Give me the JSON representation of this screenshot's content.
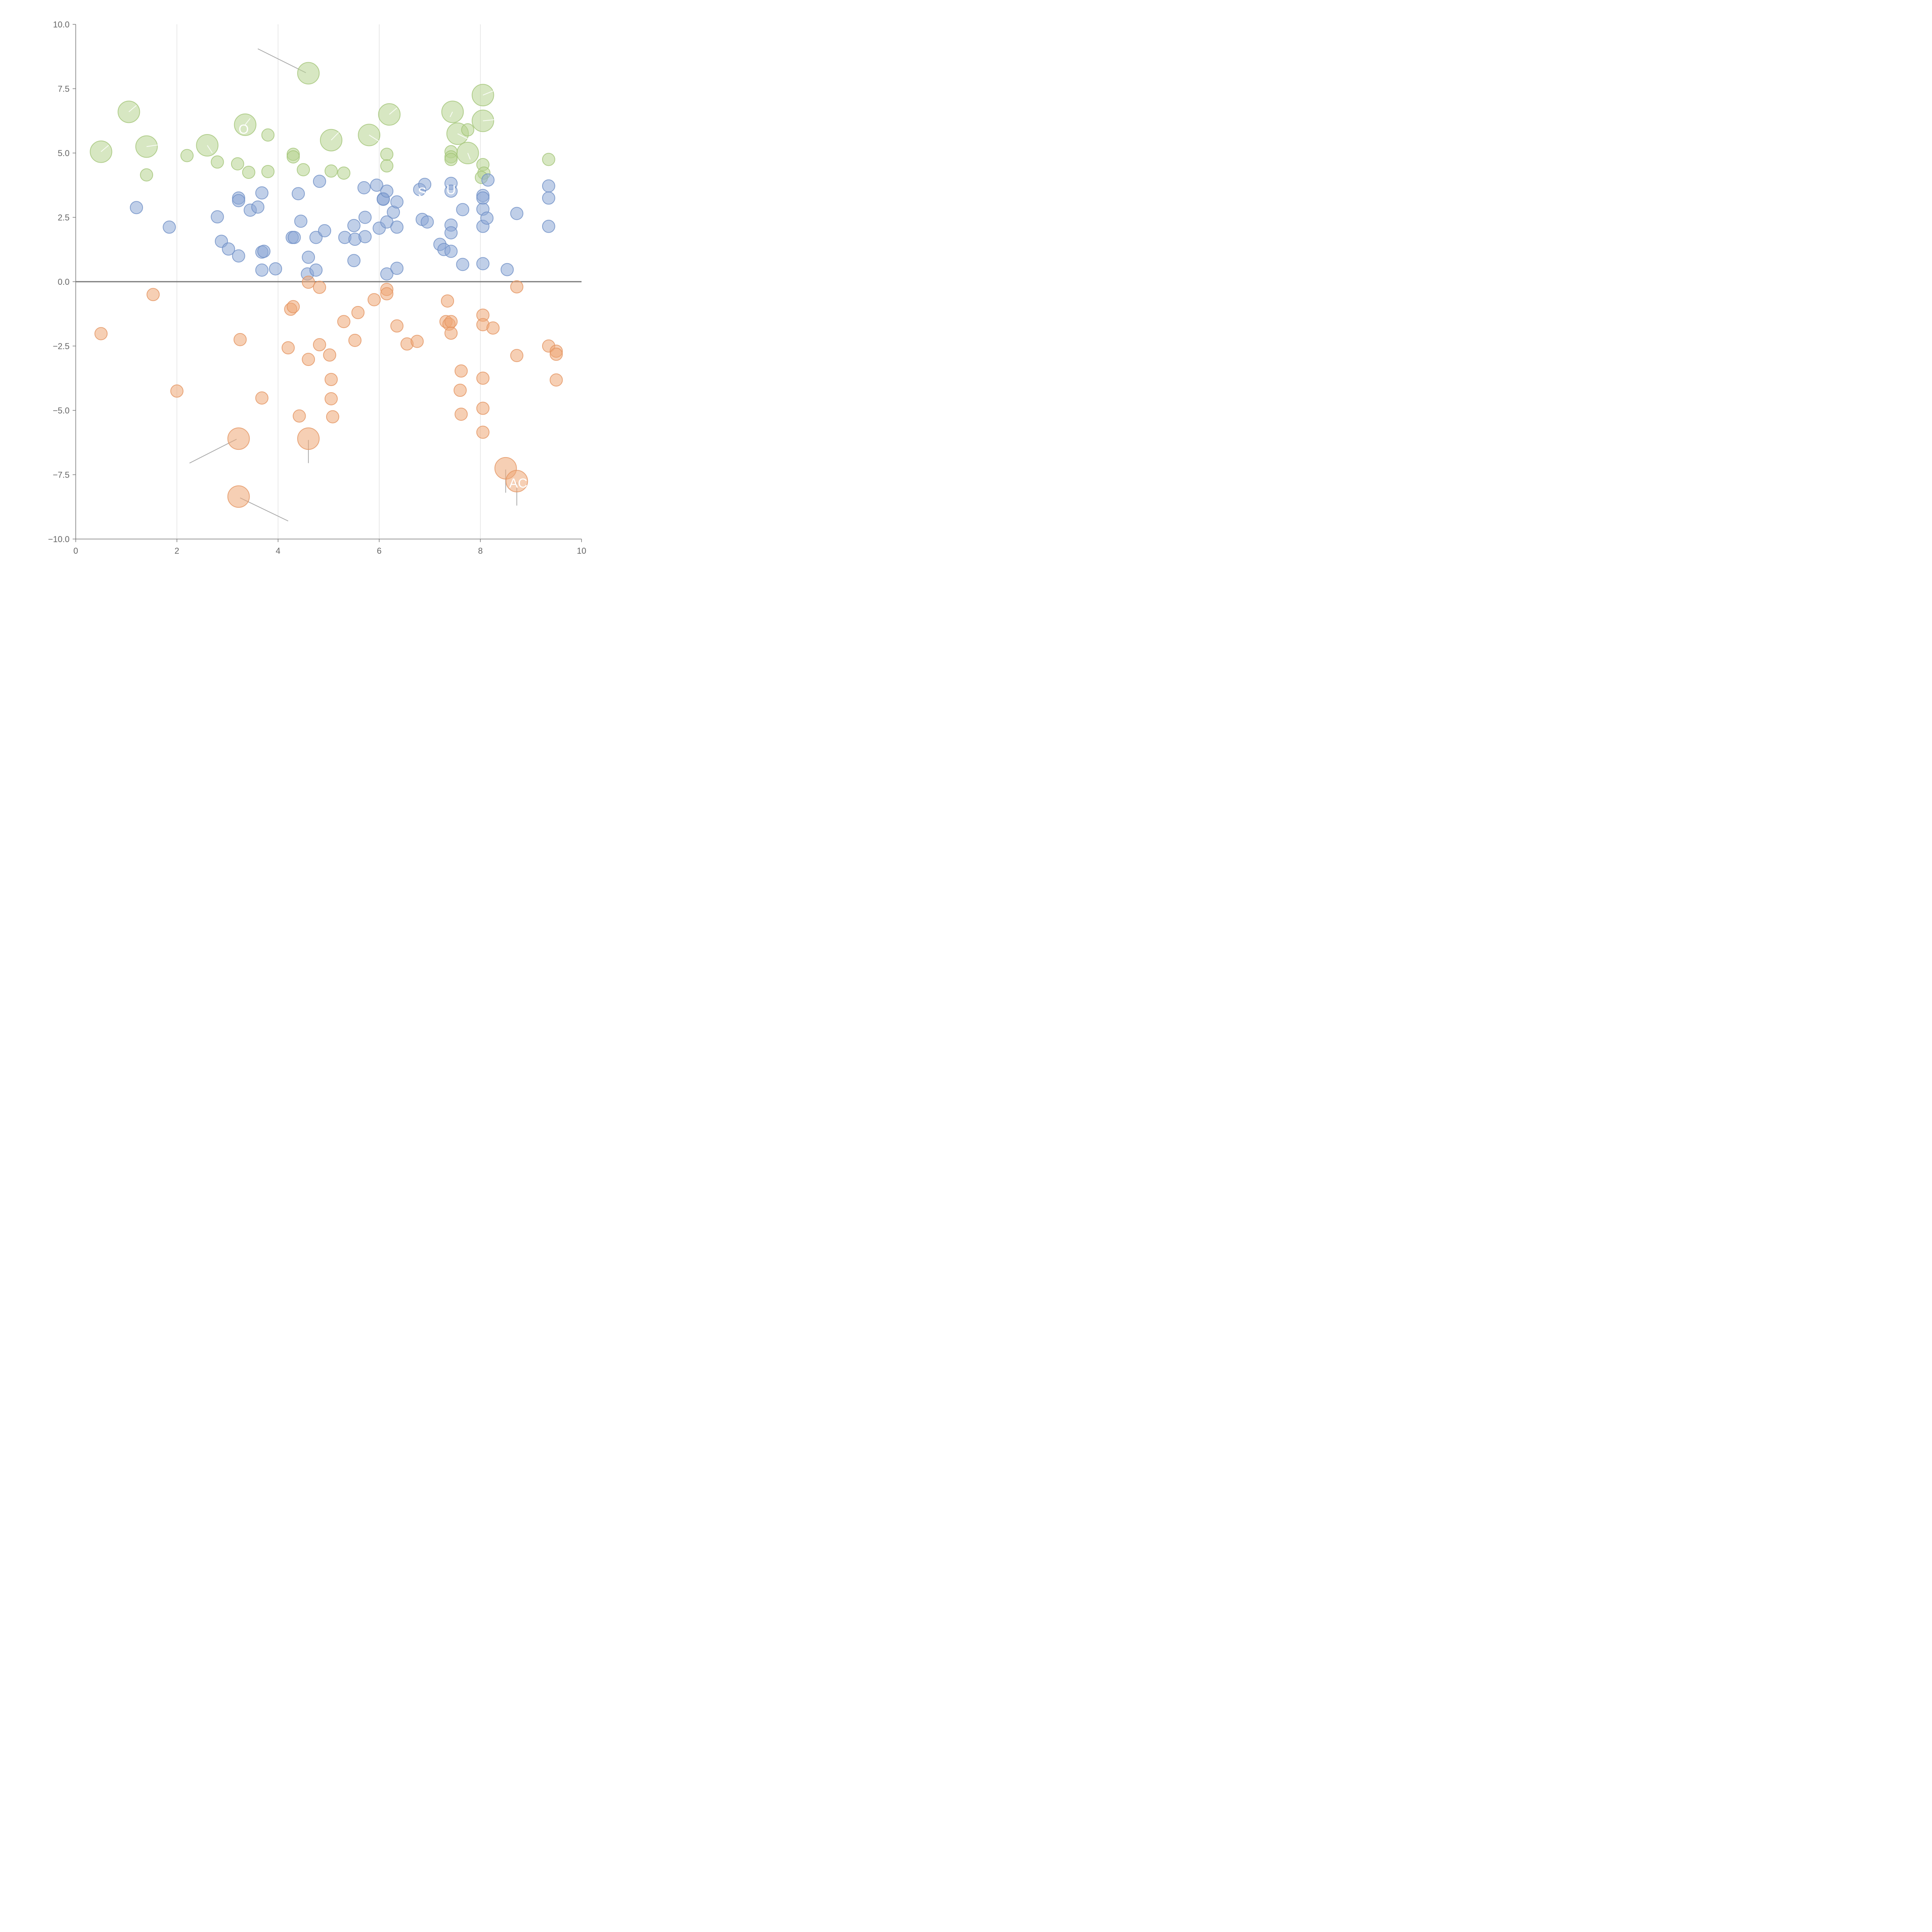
{
  "chart_data": {
    "type": "scatter",
    "title": "",
    "xlabel": "",
    "ylabel": "",
    "xlim": [
      0,
      10
    ],
    "ylim": [
      -10,
      10
    ],
    "xticks": [
      "0",
      "2",
      "4",
      "6",
      "8",
      "10"
    ],
    "yticks": [
      "10.0",
      "7.5",
      "5.0",
      "2.5",
      "0.0",
      "−2.5",
      "−5.0",
      "−7.5",
      "−10.0"
    ],
    "grid": "vertical",
    "zero_line": true,
    "colors": {
      "green_fill": "#b7d38f",
      "green_stroke": "#a3c477",
      "blue_fill": "#8ca8d6",
      "blue_stroke": "#6e8fc6",
      "orange_fill": "#efa877",
      "orange_stroke": "#e39360"
    },
    "series": [
      {
        "color": "green",
        "points": [
          {
            "x": 4.6,
            "y": 8.1,
            "r": "L"
          },
          {
            "x": 1.05,
            "y": 6.6,
            "r": "L"
          },
          {
            "x": 0.5,
            "y": 5.05,
            "r": "L"
          },
          {
            "x": 1.4,
            "y": 5.25,
            "r": "L"
          },
          {
            "x": 2.6,
            "y": 5.3,
            "r": "L"
          },
          {
            "x": 3.35,
            "y": 6.1,
            "r": "L"
          },
          {
            "x": 5.05,
            "y": 5.5,
            "r": "L"
          },
          {
            "x": 5.8,
            "y": 5.7,
            "r": "L"
          },
          {
            "x": 6.2,
            "y": 6.5,
            "r": "L"
          },
          {
            "x": 7.45,
            "y": 6.6,
            "r": "L"
          },
          {
            "x": 7.55,
            "y": 5.75,
            "r": "L"
          },
          {
            "x": 7.75,
            "y": 5.0,
            "r": "L"
          },
          {
            "x": 8.05,
            "y": 7.25,
            "r": "L"
          },
          {
            "x": 8.05,
            "y": 6.25,
            "r": "L"
          },
          {
            "x": 3.8,
            "y": 5.7,
            "r": "S"
          },
          {
            "x": 2.2,
            "y": 4.9,
            "r": "S"
          },
          {
            "x": 1.4,
            "y": 4.15,
            "r": "S"
          },
          {
            "x": 2.8,
            "y": 4.65,
            "r": "S"
          },
          {
            "x": 3.2,
            "y": 4.58,
            "r": "S"
          },
          {
            "x": 3.42,
            "y": 4.25,
            "r": "S"
          },
          {
            "x": 3.8,
            "y": 4.28,
            "r": "S"
          },
          {
            "x": 4.3,
            "y": 4.95,
            "r": "S"
          },
          {
            "x": 4.3,
            "y": 4.85,
            "r": "S"
          },
          {
            "x": 4.5,
            "y": 4.35,
            "r": "S"
          },
          {
            "x": 5.05,
            "y": 4.3,
            "r": "S"
          },
          {
            "x": 5.3,
            "y": 4.22,
            "r": "S"
          },
          {
            "x": 6.15,
            "y": 4.95,
            "r": "S"
          },
          {
            "x": 6.15,
            "y": 4.5,
            "r": "S"
          },
          {
            "x": 7.42,
            "y": 5.05,
            "r": "S"
          },
          {
            "x": 7.42,
            "y": 4.85,
            "r": "S"
          },
          {
            "x": 7.42,
            "y": 4.75,
            "r": "S"
          },
          {
            "x": 7.75,
            "y": 5.9,
            "r": "S"
          },
          {
            "x": 8.05,
            "y": 4.55,
            "r": "S"
          },
          {
            "x": 8.07,
            "y": 4.22,
            "r": "S"
          },
          {
            "x": 8.02,
            "y": 4.05,
            "r": "S"
          },
          {
            "x": 9.35,
            "y": 4.75,
            "r": "S"
          }
        ]
      },
      {
        "color": "blue",
        "points": [
          {
            "x": 1.2,
            "y": 2.88,
            "r": "S"
          },
          {
            "x": 1.85,
            "y": 2.12,
            "r": "S"
          },
          {
            "x": 2.8,
            "y": 2.52,
            "r": "S"
          },
          {
            "x": 2.88,
            "y": 1.57,
            "r": "S"
          },
          {
            "x": 3.02,
            "y": 1.27,
            "r": "S"
          },
          {
            "x": 3.22,
            "y": 1.0,
            "r": "S"
          },
          {
            "x": 3.22,
            "y": 3.25,
            "r": "S"
          },
          {
            "x": 3.22,
            "y": 3.15,
            "r": "S"
          },
          {
            "x": 3.45,
            "y": 2.78,
            "r": "S"
          },
          {
            "x": 3.6,
            "y": 2.9,
            "r": "S"
          },
          {
            "x": 3.68,
            "y": 3.45,
            "r": "S"
          },
          {
            "x": 3.68,
            "y": 1.15,
            "r": "S"
          },
          {
            "x": 3.72,
            "y": 1.18,
            "r": "S"
          },
          {
            "x": 3.68,
            "y": 0.45,
            "r": "S"
          },
          {
            "x": 3.95,
            "y": 0.5,
            "r": "S"
          },
          {
            "x": 4.28,
            "y": 1.72,
            "r": "S"
          },
          {
            "x": 4.32,
            "y": 1.72,
            "r": "S"
          },
          {
            "x": 4.4,
            "y": 3.42,
            "r": "S"
          },
          {
            "x": 4.45,
            "y": 2.35,
            "r": "S"
          },
          {
            "x": 4.6,
            "y": 0.95,
            "r": "S"
          },
          {
            "x": 4.58,
            "y": 0.3,
            "r": "S"
          },
          {
            "x": 4.75,
            "y": 1.72,
            "r": "S"
          },
          {
            "x": 4.75,
            "y": 0.45,
            "r": "S"
          },
          {
            "x": 4.82,
            "y": 3.9,
            "r": "S"
          },
          {
            "x": 4.92,
            "y": 1.98,
            "r": "S"
          },
          {
            "x": 5.32,
            "y": 1.72,
            "r": "S"
          },
          {
            "x": 5.5,
            "y": 2.18,
            "r": "S"
          },
          {
            "x": 5.52,
            "y": 1.65,
            "r": "S"
          },
          {
            "x": 5.5,
            "y": 0.82,
            "r": "S"
          },
          {
            "x": 5.7,
            "y": 3.65,
            "r": "S"
          },
          {
            "x": 5.72,
            "y": 2.5,
            "r": "S"
          },
          {
            "x": 5.72,
            "y": 1.75,
            "r": "S"
          },
          {
            "x": 5.95,
            "y": 3.75,
            "r": "S"
          },
          {
            "x": 6.0,
            "y": 2.08,
            "r": "S"
          },
          {
            "x": 6.08,
            "y": 3.22,
            "r": "S"
          },
          {
            "x": 6.08,
            "y": 3.2,
            "r": "S"
          },
          {
            "x": 6.15,
            "y": 3.52,
            "r": "S"
          },
          {
            "x": 6.15,
            "y": 2.32,
            "r": "S"
          },
          {
            "x": 6.15,
            "y": 0.3,
            "r": "S"
          },
          {
            "x": 6.28,
            "y": 2.7,
            "r": "S"
          },
          {
            "x": 6.35,
            "y": 3.1,
            "r": "S"
          },
          {
            "x": 6.35,
            "y": 2.12,
            "r": "S"
          },
          {
            "x": 6.35,
            "y": 0.52,
            "r": "S"
          },
          {
            "x": 6.8,
            "y": 3.58,
            "r": "S"
          },
          {
            "x": 6.85,
            "y": 2.42,
            "r": "S"
          },
          {
            "x": 6.9,
            "y": 3.78,
            "r": "S"
          },
          {
            "x": 6.95,
            "y": 2.32,
            "r": "S"
          },
          {
            "x": 7.2,
            "y": 1.45,
            "r": "S"
          },
          {
            "x": 7.28,
            "y": 1.25,
            "r": "S"
          },
          {
            "x": 7.42,
            "y": 3.82,
            "r": "S"
          },
          {
            "x": 7.42,
            "y": 3.52,
            "r": "S"
          },
          {
            "x": 7.42,
            "y": 2.2,
            "r": "S"
          },
          {
            "x": 7.42,
            "y": 1.9,
            "r": "S"
          },
          {
            "x": 7.42,
            "y": 1.18,
            "r": "S"
          },
          {
            "x": 7.65,
            "y": 2.8,
            "r": "S"
          },
          {
            "x": 7.65,
            "y": 0.67,
            "r": "S"
          },
          {
            "x": 8.05,
            "y": 3.35,
            "r": "S"
          },
          {
            "x": 8.05,
            "y": 3.25,
            "r": "S"
          },
          {
            "x": 8.05,
            "y": 2.82,
            "r": "S"
          },
          {
            "x": 8.05,
            "y": 2.15,
            "r": "S"
          },
          {
            "x": 8.05,
            "y": 0.7,
            "r": "S"
          },
          {
            "x": 8.15,
            "y": 3.95,
            "r": "S"
          },
          {
            "x": 8.13,
            "y": 2.47,
            "r": "S"
          },
          {
            "x": 8.53,
            "y": 0.47,
            "r": "S"
          },
          {
            "x": 8.72,
            "y": 2.65,
            "r": "S"
          },
          {
            "x": 9.35,
            "y": 3.72,
            "r": "S"
          },
          {
            "x": 9.35,
            "y": 3.25,
            "r": "S"
          },
          {
            "x": 9.35,
            "y": 2.15,
            "r": "S"
          }
        ]
      },
      {
        "color": "orange",
        "points": [
          {
            "x": 1.53,
            "y": -0.5,
            "r": "S"
          },
          {
            "x": 0.5,
            "y": -2.02,
            "r": "S"
          },
          {
            "x": 2.0,
            "y": -4.25,
            "r": "S"
          },
          {
            "x": 3.25,
            "y": -2.25,
            "r": "S"
          },
          {
            "x": 3.68,
            "y": -4.52,
            "r": "S"
          },
          {
            "x": 4.2,
            "y": -2.57,
            "r": "S"
          },
          {
            "x": 4.25,
            "y": -1.07,
            "r": "S"
          },
          {
            "x": 4.3,
            "y": -0.97,
            "r": "S"
          },
          {
            "x": 4.42,
            "y": -5.22,
            "r": "S"
          },
          {
            "x": 4.6,
            "y": -0.02,
            "r": "S"
          },
          {
            "x": 4.6,
            "y": -3.02,
            "r": "S"
          },
          {
            "x": 4.82,
            "y": -0.22,
            "r": "S"
          },
          {
            "x": 4.82,
            "y": -2.45,
            "r": "S"
          },
          {
            "x": 5.02,
            "y": -2.85,
            "r": "S"
          },
          {
            "x": 5.05,
            "y": -3.8,
            "r": "S"
          },
          {
            "x": 5.05,
            "y": -4.55,
            "r": "S"
          },
          {
            "x": 5.08,
            "y": -5.25,
            "r": "S"
          },
          {
            "x": 5.3,
            "y": -1.55,
            "r": "S"
          },
          {
            "x": 5.52,
            "y": -2.28,
            "r": "S"
          },
          {
            "x": 5.58,
            "y": -1.2,
            "r": "S"
          },
          {
            "x": 5.9,
            "y": -0.7,
            "r": "S"
          },
          {
            "x": 6.15,
            "y": -0.3,
            "r": "S"
          },
          {
            "x": 6.15,
            "y": -0.47,
            "r": "S"
          },
          {
            "x": 6.35,
            "y": -1.72,
            "r": "S"
          },
          {
            "x": 6.55,
            "y": -2.42,
            "r": "S"
          },
          {
            "x": 6.75,
            "y": -2.32,
            "r": "S"
          },
          {
            "x": 7.35,
            "y": -0.75,
            "r": "S"
          },
          {
            "x": 7.32,
            "y": -1.55,
            "r": "S"
          },
          {
            "x": 7.38,
            "y": -1.65,
            "r": "S"
          },
          {
            "x": 7.42,
            "y": -1.55,
            "r": "S"
          },
          {
            "x": 7.42,
            "y": -2.0,
            "r": "S"
          },
          {
            "x": 7.62,
            "y": -3.47,
            "r": "S"
          },
          {
            "x": 7.6,
            "y": -4.22,
            "r": "S"
          },
          {
            "x": 7.62,
            "y": -5.15,
            "r": "S"
          },
          {
            "x": 8.05,
            "y": -1.3,
            "r": "S"
          },
          {
            "x": 8.05,
            "y": -1.67,
            "r": "S"
          },
          {
            "x": 8.05,
            "y": -3.75,
            "r": "S"
          },
          {
            "x": 8.05,
            "y": -4.92,
            "r": "S"
          },
          {
            "x": 8.05,
            "y": -5.85,
            "r": "S"
          },
          {
            "x": 8.25,
            "y": -1.8,
            "r": "S"
          },
          {
            "x": 8.72,
            "y": -0.2,
            "r": "S"
          },
          {
            "x": 8.72,
            "y": -2.87,
            "r": "S"
          },
          {
            "x": 9.35,
            "y": -2.5,
            "r": "S"
          },
          {
            "x": 9.5,
            "y": -2.7,
            "r": "S"
          },
          {
            "x": 9.5,
            "y": -2.82,
            "r": "S"
          },
          {
            "x": 9.5,
            "y": -3.82,
            "r": "S"
          },
          {
            "x": 3.22,
            "y": -6.1,
            "r": "L"
          },
          {
            "x": 4.6,
            "y": -6.1,
            "r": "L"
          },
          {
            "x": 3.22,
            "y": -8.35,
            "r": "L"
          },
          {
            "x": 8.5,
            "y": -7.25,
            "r": "L"
          },
          {
            "x": 8.72,
            "y": -7.75,
            "r": "L"
          }
        ]
      }
    ],
    "annotations": [
      {
        "text": "V",
        "x": 2.6,
        "y": 5.85
      },
      {
        "text": "O",
        "x": 3.32,
        "y": 5.75
      },
      {
        "text": "S",
        "x": 6.85,
        "y": 3.3
      },
      {
        "text": "U",
        "x": 7.42,
        "y": 3.4
      },
      {
        "text": "AC",
        "x": 8.75,
        "y": -8.0
      }
    ]
  }
}
